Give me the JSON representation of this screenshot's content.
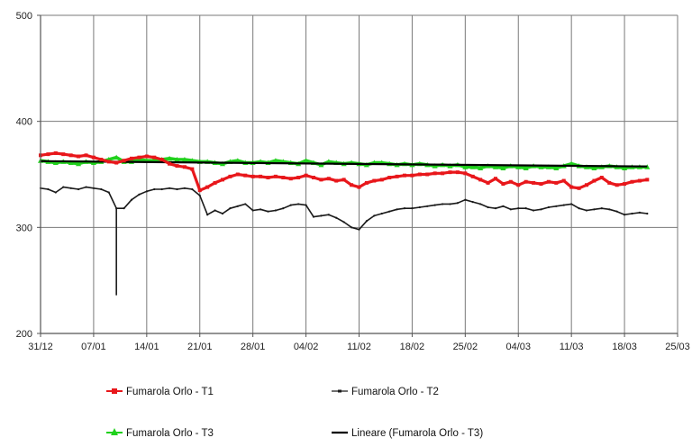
{
  "chart_data": {
    "type": "line",
    "x_axis": {
      "kind": "date",
      "year": 2019,
      "min": "2018-12-31",
      "max": "2019-03-25",
      "ticks": [
        {
          "date": "2018-12-31",
          "label": "31/12"
        },
        {
          "date": "2019-01-07",
          "label": "07/01"
        },
        {
          "date": "2019-01-14",
          "label": "14/01"
        },
        {
          "date": "2019-01-21",
          "label": "21/01"
        },
        {
          "date": "2019-01-28",
          "label": "28/01"
        },
        {
          "date": "2019-02-04",
          "label": "04/02"
        },
        {
          "date": "2019-02-11",
          "label": "11/02"
        },
        {
          "date": "2019-02-18",
          "label": "18/02"
        },
        {
          "date": "2019-02-25",
          "label": "25/02"
        },
        {
          "date": "2019-03-04",
          "label": "04/03"
        },
        {
          "date": "2019-03-11",
          "label": "11/03"
        },
        {
          "date": "2019-03-18",
          "label": "18/03"
        },
        {
          "date": "2019-03-25",
          "label": "25/03"
        }
      ]
    },
    "y_axis": {
      "min": 200,
      "max": 500,
      "ticks": [
        {
          "value": 200,
          "label": "200"
        },
        {
          "value": 300,
          "label": "300"
        },
        {
          "value": 400,
          "label": "400"
        },
        {
          "value": 500,
          "label": "500"
        }
      ]
    },
    "grid": {
      "vertical": true,
      "horizontal": true
    },
    "legend_position": "bottom",
    "series": [
      {
        "name": "Fumarola Orlo - T1",
        "color": "#e8171b",
        "marker": "square",
        "points": [
          [
            "2018-12-31",
            368
          ],
          [
            "2019-01-01",
            369
          ],
          [
            "2019-01-02",
            370
          ],
          [
            "2019-01-03",
            369
          ],
          [
            "2019-01-04",
            368
          ],
          [
            "2019-01-05",
            367
          ],
          [
            "2019-01-06",
            368
          ],
          [
            "2019-01-07",
            366
          ],
          [
            "2019-01-08",
            364
          ],
          [
            "2019-01-09",
            362
          ],
          [
            "2019-01-10",
            361
          ],
          [
            "2019-01-11",
            363
          ],
          [
            "2019-01-12",
            365
          ],
          [
            "2019-01-13",
            366
          ],
          [
            "2019-01-14",
            367
          ],
          [
            "2019-01-15",
            366
          ],
          [
            "2019-01-16",
            364
          ],
          [
            "2019-01-17",
            360
          ],
          [
            "2019-01-18",
            358
          ],
          [
            "2019-01-19",
            357
          ],
          [
            "2019-01-20",
            355
          ],
          [
            "2019-01-21",
            335
          ],
          [
            "2019-01-22",
            338
          ],
          [
            "2019-01-23",
            342
          ],
          [
            "2019-01-24",
            345
          ],
          [
            "2019-01-25",
            348
          ],
          [
            "2019-01-26",
            350
          ],
          [
            "2019-01-27",
            349
          ],
          [
            "2019-01-28",
            348
          ],
          [
            "2019-01-29",
            348
          ],
          [
            "2019-01-30",
            347
          ],
          [
            "2019-01-31",
            348
          ],
          [
            "2019-02-01",
            347
          ],
          [
            "2019-02-02",
            346
          ],
          [
            "2019-02-03",
            347
          ],
          [
            "2019-02-04",
            349
          ],
          [
            "2019-02-05",
            347
          ],
          [
            "2019-02-06",
            345
          ],
          [
            "2019-02-07",
            346
          ],
          [
            "2019-02-08",
            344
          ],
          [
            "2019-02-09",
            345
          ],
          [
            "2019-02-10",
            340
          ],
          [
            "2019-02-11",
            338
          ],
          [
            "2019-02-12",
            342
          ],
          [
            "2019-02-13",
            344
          ],
          [
            "2019-02-14",
            345
          ],
          [
            "2019-02-15",
            347
          ],
          [
            "2019-02-16",
            348
          ],
          [
            "2019-02-17",
            349
          ],
          [
            "2019-02-18",
            349
          ],
          [
            "2019-02-19",
            350
          ],
          [
            "2019-02-20",
            350
          ],
          [
            "2019-02-21",
            351
          ],
          [
            "2019-02-22",
            351
          ],
          [
            "2019-02-23",
            352
          ],
          [
            "2019-02-24",
            352
          ],
          [
            "2019-02-25",
            351
          ],
          [
            "2019-02-26",
            348
          ],
          [
            "2019-02-27",
            345
          ],
          [
            "2019-02-28",
            342
          ],
          [
            "2019-03-01",
            346
          ],
          [
            "2019-03-02",
            341
          ],
          [
            "2019-03-03",
            343
          ],
          [
            "2019-03-04",
            340
          ],
          [
            "2019-03-05",
            343
          ],
          [
            "2019-03-06",
            342
          ],
          [
            "2019-03-07",
            341
          ],
          [
            "2019-03-08",
            343
          ],
          [
            "2019-03-09",
            342
          ],
          [
            "2019-03-10",
            344
          ],
          [
            "2019-03-11",
            338
          ],
          [
            "2019-03-12",
            337
          ],
          [
            "2019-03-13",
            340
          ],
          [
            "2019-03-14",
            344
          ],
          [
            "2019-03-15",
            347
          ],
          [
            "2019-03-16",
            342
          ],
          [
            "2019-03-17",
            340
          ],
          [
            "2019-03-18",
            341
          ],
          [
            "2019-03-19",
            343
          ],
          [
            "2019-03-20",
            344
          ],
          [
            "2019-03-21",
            345
          ]
        ]
      },
      {
        "name": "Fumarola Orlo - T2",
        "color": "#1a1a1a",
        "marker": "dash",
        "points": [
          [
            "2018-12-31",
            337
          ],
          [
            "2019-01-01",
            336
          ],
          [
            "2019-01-02",
            333
          ],
          [
            "2019-01-03",
            338
          ],
          [
            "2019-01-04",
            337
          ],
          [
            "2019-01-05",
            336
          ],
          [
            "2019-01-06",
            338
          ],
          [
            "2019-01-07",
            337
          ],
          [
            "2019-01-08",
            336
          ],
          [
            "2019-01-09",
            333
          ],
          [
            "2019-01-10",
            318
          ],
          [
            "2019-01-11",
            318
          ],
          [
            "2019-01-12",
            326
          ],
          [
            "2019-01-13",
            331
          ],
          [
            "2019-01-14",
            334
          ],
          [
            "2019-01-15",
            336
          ],
          [
            "2019-01-16",
            336
          ],
          [
            "2019-01-17",
            337
          ],
          [
            "2019-01-18",
            336
          ],
          [
            "2019-01-19",
            337
          ],
          [
            "2019-01-20",
            336
          ],
          [
            "2019-01-21",
            330
          ],
          [
            "2019-01-22",
            312
          ],
          [
            "2019-01-23",
            316
          ],
          [
            "2019-01-24",
            313
          ],
          [
            "2019-01-25",
            318
          ],
          [
            "2019-01-26",
            320
          ],
          [
            "2019-01-27",
            322
          ],
          [
            "2019-01-28",
            316
          ],
          [
            "2019-01-29",
            317
          ],
          [
            "2019-01-30",
            315
          ],
          [
            "2019-01-31",
            316
          ],
          [
            "2019-02-01",
            318
          ],
          [
            "2019-02-02",
            321
          ],
          [
            "2019-02-03",
            322
          ],
          [
            "2019-02-04",
            321
          ],
          [
            "2019-02-05",
            310
          ],
          [
            "2019-02-06",
            311
          ],
          [
            "2019-02-07",
            312
          ],
          [
            "2019-02-08",
            309
          ],
          [
            "2019-02-09",
            305
          ],
          [
            "2019-02-10",
            300
          ],
          [
            "2019-02-11",
            298
          ],
          [
            "2019-02-12",
            306
          ],
          [
            "2019-02-13",
            311
          ],
          [
            "2019-02-14",
            313
          ],
          [
            "2019-02-15",
            315
          ],
          [
            "2019-02-16",
            317
          ],
          [
            "2019-02-17",
            318
          ],
          [
            "2019-02-18",
            318
          ],
          [
            "2019-02-19",
            319
          ],
          [
            "2019-02-20",
            320
          ],
          [
            "2019-02-21",
            321
          ],
          [
            "2019-02-22",
            322
          ],
          [
            "2019-02-23",
            322
          ],
          [
            "2019-02-24",
            323
          ],
          [
            "2019-02-25",
            326
          ],
          [
            "2019-02-26",
            324
          ],
          [
            "2019-02-27",
            322
          ],
          [
            "2019-02-28",
            319
          ],
          [
            "2019-03-01",
            318
          ],
          [
            "2019-03-02",
            320
          ],
          [
            "2019-03-03",
            317
          ],
          [
            "2019-03-04",
            318
          ],
          [
            "2019-03-05",
            318
          ],
          [
            "2019-03-06",
            316
          ],
          [
            "2019-03-07",
            317
          ],
          [
            "2019-03-08",
            319
          ],
          [
            "2019-03-09",
            320
          ],
          [
            "2019-03-10",
            321
          ],
          [
            "2019-03-11",
            322
          ],
          [
            "2019-03-12",
            318
          ],
          [
            "2019-03-13",
            316
          ],
          [
            "2019-03-14",
            317
          ],
          [
            "2019-03-15",
            318
          ],
          [
            "2019-03-16",
            317
          ],
          [
            "2019-03-17",
            315
          ],
          [
            "2019-03-18",
            312
          ],
          [
            "2019-03-19",
            313
          ],
          [
            "2019-03-20",
            314
          ],
          [
            "2019-03-21",
            313
          ]
        ],
        "spikes": [
          {
            "date": "2019-01-10",
            "from": 318,
            "to": 236
          }
        ]
      },
      {
        "name": "Fumarola Orlo - T3",
        "color": "#20d11c",
        "marker": "triangle",
        "points": [
          [
            "2018-12-31",
            363
          ],
          [
            "2019-01-01",
            362
          ],
          [
            "2019-01-02",
            361
          ],
          [
            "2019-01-03",
            362
          ],
          [
            "2019-01-04",
            361
          ],
          [
            "2019-01-05",
            360
          ],
          [
            "2019-01-06",
            362
          ],
          [
            "2019-01-07",
            361
          ],
          [
            "2019-01-08",
            362
          ],
          [
            "2019-01-09",
            364
          ],
          [
            "2019-01-10",
            366
          ],
          [
            "2019-01-11",
            362
          ],
          [
            "2019-01-12",
            362
          ],
          [
            "2019-01-13",
            364
          ],
          [
            "2019-01-14",
            363
          ],
          [
            "2019-01-15",
            363
          ],
          [
            "2019-01-16",
            364
          ],
          [
            "2019-01-17",
            365
          ],
          [
            "2019-01-18",
            364
          ],
          [
            "2019-01-19",
            364
          ],
          [
            "2019-01-20",
            363
          ],
          [
            "2019-01-21",
            362
          ],
          [
            "2019-01-22",
            362
          ],
          [
            "2019-01-23",
            361
          ],
          [
            "2019-01-24",
            360
          ],
          [
            "2019-01-25",
            362
          ],
          [
            "2019-01-26",
            363
          ],
          [
            "2019-01-27",
            361
          ],
          [
            "2019-01-28",
            361
          ],
          [
            "2019-01-29",
            362
          ],
          [
            "2019-01-30",
            361
          ],
          [
            "2019-01-31",
            363
          ],
          [
            "2019-02-01",
            362
          ],
          [
            "2019-02-02",
            361
          ],
          [
            "2019-02-03",
            360
          ],
          [
            "2019-02-04",
            363
          ],
          [
            "2019-02-05",
            361
          ],
          [
            "2019-02-06",
            359
          ],
          [
            "2019-02-07",
            362
          ],
          [
            "2019-02-08",
            361
          ],
          [
            "2019-02-09",
            360
          ],
          [
            "2019-02-10",
            361
          ],
          [
            "2019-02-11",
            360
          ],
          [
            "2019-02-12",
            359
          ],
          [
            "2019-02-13",
            361
          ],
          [
            "2019-02-14",
            361
          ],
          [
            "2019-02-15",
            360
          ],
          [
            "2019-02-16",
            359
          ],
          [
            "2019-02-17",
            360
          ],
          [
            "2019-02-18",
            359
          ],
          [
            "2019-02-19",
            360
          ],
          [
            "2019-02-20",
            359
          ],
          [
            "2019-02-21",
            358
          ],
          [
            "2019-02-22",
            359
          ],
          [
            "2019-02-23",
            358
          ],
          [
            "2019-02-24",
            359
          ],
          [
            "2019-02-25",
            357
          ],
          [
            "2019-02-26",
            357
          ],
          [
            "2019-02-27",
            356
          ],
          [
            "2019-02-28",
            358
          ],
          [
            "2019-03-01",
            357
          ],
          [
            "2019-03-02",
            356
          ],
          [
            "2019-03-03",
            358
          ],
          [
            "2019-03-04",
            357
          ],
          [
            "2019-03-05",
            356
          ],
          [
            "2019-03-06",
            358
          ],
          [
            "2019-03-07",
            357
          ],
          [
            "2019-03-08",
            357
          ],
          [
            "2019-03-09",
            356
          ],
          [
            "2019-03-10",
            358
          ],
          [
            "2019-03-11",
            360
          ],
          [
            "2019-03-12",
            358
          ],
          [
            "2019-03-13",
            357
          ],
          [
            "2019-03-14",
            356
          ],
          [
            "2019-03-15",
            357
          ],
          [
            "2019-03-16",
            358
          ],
          [
            "2019-03-17",
            357
          ],
          [
            "2019-03-18",
            356
          ],
          [
            "2019-03-19",
            357
          ],
          [
            "2019-03-20",
            357
          ],
          [
            "2019-03-21",
            357
          ]
        ]
      },
      {
        "name": "Lineare (Fumarola Orlo - T3)",
        "color": "#000000",
        "marker": "none",
        "trendline": true,
        "points": [
          [
            "2018-12-31",
            362.5
          ],
          [
            "2019-03-21",
            357.5
          ]
        ]
      }
    ]
  },
  "legend": {
    "items": [
      {
        "label": "Fumarola Orlo - T1",
        "color": "#e8171b",
        "marker": "square"
      },
      {
        "label": "Fumarola Orlo - T2",
        "color": "#1a1a1a",
        "marker": "dash"
      },
      {
        "label": "Fumarola Orlo - T3",
        "color": "#20d11c",
        "marker": "triangle"
      },
      {
        "label": "Lineare (Fumarola Orlo - T3)",
        "color": "#000000",
        "marker": "none"
      }
    ]
  }
}
